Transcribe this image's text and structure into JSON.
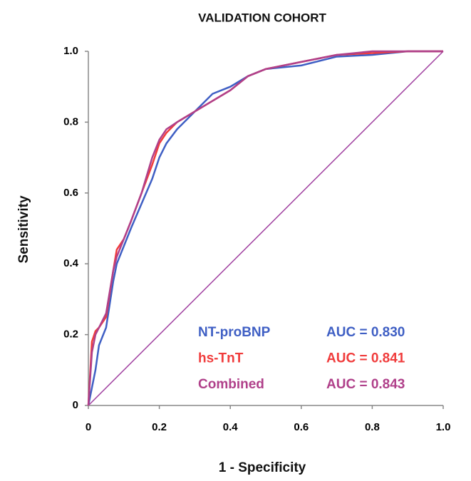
{
  "chart_data": {
    "type": "line",
    "title": "VALIDATION COHORT",
    "x_label": "1 - Specificity",
    "y_label": "Sensitivity",
    "x": [
      0,
      0.01,
      0.02,
      0.03,
      0.05,
      0.07,
      0.08,
      0.1,
      0.12,
      0.15,
      0.18,
      0.2,
      0.22,
      0.25,
      0.3,
      0.35,
      0.4,
      0.45,
      0.5,
      0.6,
      0.7,
      0.8,
      0.9,
      1
    ],
    "series": [
      {
        "name": "NT-proBNP",
        "auc_label": "AUC = 0.830",
        "color": "#3f5fc4",
        "values": [
          0,
          0.05,
          0.1,
          0.17,
          0.22,
          0.35,
          0.4,
          0.45,
          0.5,
          0.57,
          0.64,
          0.7,
          0.74,
          0.78,
          0.83,
          0.88,
          0.9,
          0.93,
          0.95,
          0.96,
          0.985,
          0.99,
          1,
          1
        ]
      },
      {
        "name": "hs-TnT",
        "auc_label": "AUC = 0.841",
        "color": "#f03c3c",
        "values": [
          0,
          0.18,
          0.21,
          0.22,
          0.25,
          0.38,
          0.44,
          0.47,
          0.52,
          0.6,
          0.68,
          0.74,
          0.77,
          0.8,
          0.83,
          0.86,
          0.89,
          0.93,
          0.95,
          0.97,
          0.99,
          0.995,
          1,
          1
        ]
      },
      {
        "name": "Combined",
        "auc_label": "AUC = 0.843",
        "color": "#b0408a",
        "values": [
          0,
          0.15,
          0.2,
          0.22,
          0.26,
          0.38,
          0.42,
          0.47,
          0.52,
          0.6,
          0.7,
          0.75,
          0.78,
          0.8,
          0.83,
          0.86,
          0.89,
          0.93,
          0.95,
          0.97,
          0.99,
          1,
          1,
          1
        ]
      }
    ],
    "diagonal_color": "#a040a0",
    "xlim": [
      0,
      1
    ],
    "ylim": [
      0,
      1
    ],
    "xticks": [
      0,
      0.2,
      0.4,
      0.6,
      0.8,
      {
        "value": 1,
        "label": "1.0"
      }
    ],
    "yticks": [
      0,
      0.2,
      0.4,
      0.6,
      0.8,
      {
        "value": 1,
        "label": "1.0"
      }
    ],
    "grid": false
  }
}
